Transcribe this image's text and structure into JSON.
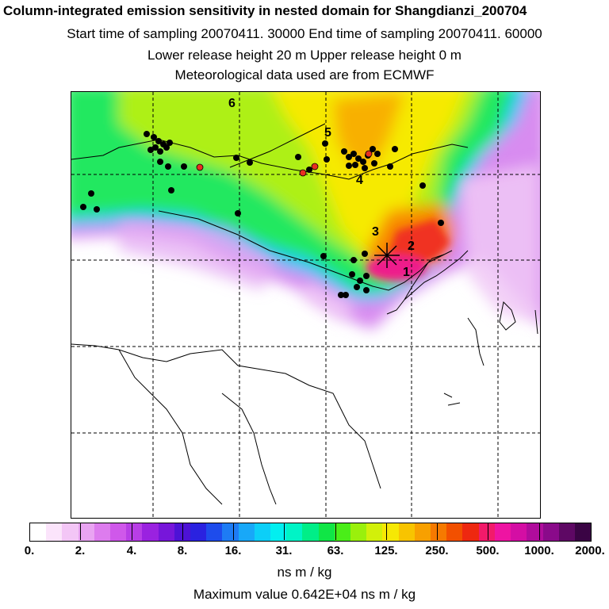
{
  "header": {
    "title": "Column-integrated emission sensitivity in nested domain for Shangdianzi_200704",
    "sampling": "Start time of sampling 20070411. 30000     End time of sampling 20070411. 60000",
    "release": "Lower release height   20 m          Upper release height    0 m",
    "met": "Meteorological data used are from ECMWF"
  },
  "map": {
    "markers": [
      "1",
      "2",
      "3",
      "4",
      "5",
      "6"
    ]
  },
  "colorbar": {
    "colors": [
      "#ffffff",
      "#fbe4fb",
      "#f3c6f6",
      "#e9a4f2",
      "#dd7cee",
      "#cf58ea",
      "#b83ee6",
      "#9a22e0",
      "#7716da",
      "#4d12d6",
      "#2a22e0",
      "#1e4cec",
      "#1e7cf4",
      "#18a8f8",
      "#0ccff8",
      "#02eff0",
      "#00f4c6",
      "#00ee88",
      "#10e646",
      "#4aee18",
      "#9af00c",
      "#d2f00a",
      "#f6e804",
      "#f8c400",
      "#f8a000",
      "#f67a00",
      "#f25000",
      "#ee2810",
      "#f21a6a",
      "#ee14a2",
      "#d40ea4",
      "#b00c9c",
      "#8a0a8a",
      "#5e0864",
      "#3a0444"
    ],
    "labels": [
      "0.",
      "2.",
      "4.",
      "8.",
      "16.",
      "31.",
      "63.",
      "125.",
      "250.",
      "500.",
      "1000.",
      "2000."
    ],
    "unit": "ns m / kg"
  },
  "footer": {
    "max_value": "Maximum value  0.642E+04 ns m / kg"
  }
}
